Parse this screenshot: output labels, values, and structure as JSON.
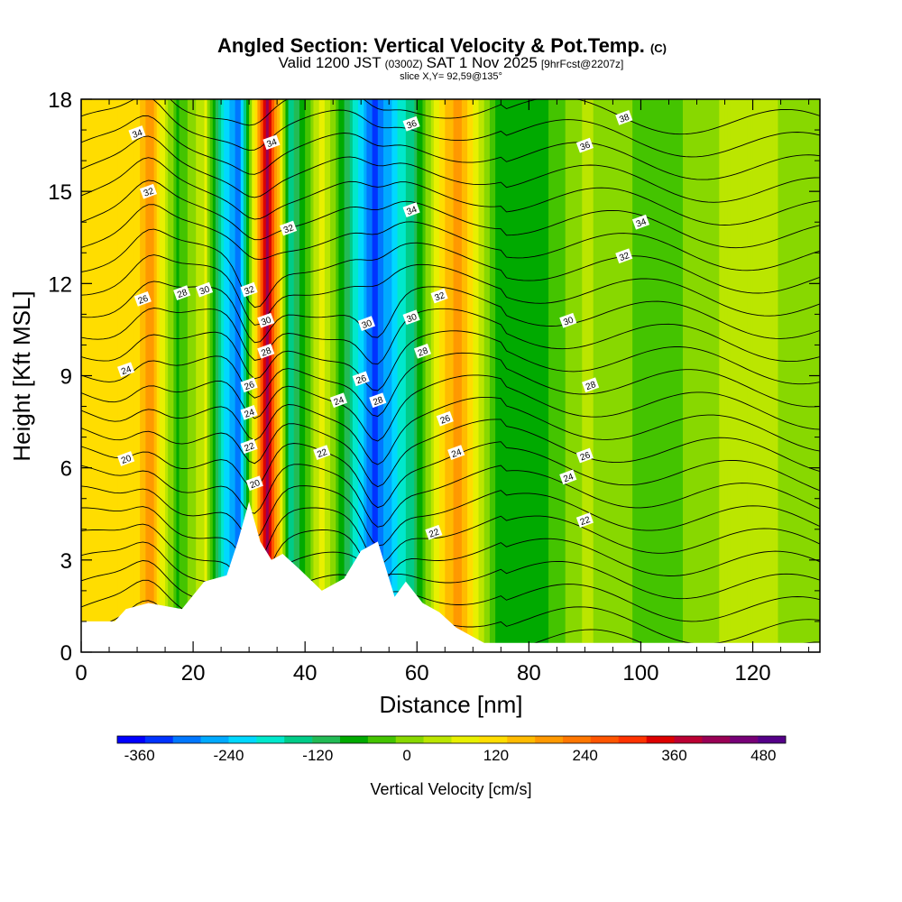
{
  "chart_data": {
    "type": "heatmap",
    "title": "Angled Section: Vertical Velocity & Pot.Temp.",
    "title_units": "(C)",
    "subtitle": {
      "valid_prefix": "Valid 1200 JST",
      "utc": "(0300Z)",
      "date": "SAT 1 Nov 2025",
      "forecast": "[9hrFcst@2207z]"
    },
    "slice_label": "slice X,Y= 92,59@135°",
    "xlabel": "Distance [nm]",
    "ylabel": "Height [Kft MSL]",
    "xlim": [
      0,
      132
    ],
    "ylim": [
      0,
      18
    ],
    "xticks": [
      "0",
      "20",
      "40",
      "60",
      "80",
      "100",
      "120"
    ],
    "yticks": [
      "0",
      "3",
      "6",
      "9",
      "12",
      "15",
      "18"
    ],
    "colorbar": {
      "label": "Vertical Velocity [cm/s]",
      "tick_labels": [
        "-360",
        "-240",
        "-120",
        "0",
        "120",
        "240",
        "360",
        "480"
      ],
      "tick_values": [
        -360,
        -240,
        -120,
        0,
        120,
        240,
        360,
        480
      ],
      "range": [
        -390,
        510
      ],
      "colors": [
        "#0000ff",
        "#0033ff",
        "#0077ff",
        "#00aaff",
        "#00d8ff",
        "#00e8cc",
        "#00cc88",
        "#22bb55",
        "#00aa00",
        "#44c400",
        "#88d800",
        "#bbe600",
        "#e8f000",
        "#ffdd00",
        "#ffbb00",
        "#ff9900",
        "#ff7700",
        "#ff5500",
        "#ff3300",
        "#dd0000",
        "#bb0033",
        "#990055",
        "#770077",
        "#550088"
      ]
    },
    "vertical_velocity_bands": [
      {
        "x_nm": 10,
        "value": 130
      },
      {
        "x_nm": 12,
        "value": 200
      },
      {
        "x_nm": 17,
        "value": -60
      },
      {
        "x_nm": 22,
        "value": 60
      },
      {
        "x_nm": 25,
        "value": -200
      },
      {
        "x_nm": 28,
        "value": -300
      },
      {
        "x_nm": 33,
        "value": 420
      },
      {
        "x_nm": 37,
        "value": -150
      },
      {
        "x_nm": 43,
        "value": 80
      },
      {
        "x_nm": 46,
        "value": -60
      },
      {
        "x_nm": 52,
        "value": -330
      },
      {
        "x_nm": 59,
        "value": -130
      },
      {
        "x_nm": 64,
        "value": 110
      },
      {
        "x_nm": 67,
        "value": 200
      },
      {
        "x_nm": 74,
        "value": -60
      },
      {
        "x_nm": 81,
        "value": -80
      },
      {
        "x_nm": 90,
        "value": 30
      },
      {
        "x_nm": 103,
        "value": -40
      },
      {
        "x_nm": 115,
        "value": 30
      },
      {
        "x_nm": 127,
        "value": 20
      }
    ],
    "terrain": {
      "x_nm": [
        0,
        6,
        8,
        12,
        18,
        22,
        26,
        28,
        30,
        32,
        34,
        36,
        39,
        43,
        47,
        50,
        53,
        56,
        58,
        61,
        64,
        67,
        70,
        72,
        132
      ],
      "height_kft": [
        1.0,
        1.0,
        1.4,
        1.6,
        1.4,
        2.3,
        2.5,
        3.6,
        4.9,
        3.6,
        3.0,
        3.2,
        2.7,
        2.0,
        2.4,
        3.3,
        3.6,
        1.8,
        2.3,
        1.6,
        1.3,
        0.8,
        0.5,
        0.3,
        0.3
      ]
    },
    "pot_temp_contour_labels": [
      {
        "text": "34",
        "x_nm": 10,
        "y_kft": 16.9
      },
      {
        "text": "32",
        "x_nm": 12,
        "y_kft": 15.0
      },
      {
        "text": "26",
        "x_nm": 11,
        "y_kft": 11.5
      },
      {
        "text": "28",
        "x_nm": 18,
        "y_kft": 11.7
      },
      {
        "text": "30",
        "x_nm": 22,
        "y_kft": 11.8
      },
      {
        "text": "24",
        "x_nm": 8,
        "y_kft": 9.2
      },
      {
        "text": "20",
        "x_nm": 8,
        "y_kft": 6.3
      },
      {
        "text": "34",
        "x_nm": 34,
        "y_kft": 16.6
      },
      {
        "text": "32",
        "x_nm": 37,
        "y_kft": 13.8
      },
      {
        "text": "32",
        "x_nm": 30,
        "y_kft": 11.8
      },
      {
        "text": "30",
        "x_nm": 33,
        "y_kft": 10.8
      },
      {
        "text": "28",
        "x_nm": 33,
        "y_kft": 9.8
      },
      {
        "text": "26",
        "x_nm": 30,
        "y_kft": 8.7
      },
      {
        "text": "24",
        "x_nm": 30,
        "y_kft": 7.8
      },
      {
        "text": "22",
        "x_nm": 30,
        "y_kft": 6.7
      },
      {
        "text": "20",
        "x_nm": 31,
        "y_kft": 5.5
      },
      {
        "text": "22",
        "x_nm": 43,
        "y_kft": 6.5
      },
      {
        "text": "24",
        "x_nm": 46,
        "y_kft": 8.2
      },
      {
        "text": "36",
        "x_nm": 59,
        "y_kft": 17.2
      },
      {
        "text": "34",
        "x_nm": 59,
        "y_kft": 14.4
      },
      {
        "text": "32",
        "x_nm": 64,
        "y_kft": 11.6
      },
      {
        "text": "30",
        "x_nm": 59,
        "y_kft": 10.9
      },
      {
        "text": "30",
        "x_nm": 51,
        "y_kft": 10.7
      },
      {
        "text": "28",
        "x_nm": 61,
        "y_kft": 9.8
      },
      {
        "text": "26",
        "x_nm": 50,
        "y_kft": 8.9
      },
      {
        "text": "28",
        "x_nm": 53,
        "y_kft": 8.2
      },
      {
        "text": "26",
        "x_nm": 65,
        "y_kft": 7.6
      },
      {
        "text": "24",
        "x_nm": 67,
        "y_kft": 6.5
      },
      {
        "text": "22",
        "x_nm": 63,
        "y_kft": 3.9
      },
      {
        "text": "38",
        "x_nm": 97,
        "y_kft": 17.4
      },
      {
        "text": "36",
        "x_nm": 90,
        "y_kft": 16.5
      },
      {
        "text": "34",
        "x_nm": 100,
        "y_kft": 14.0
      },
      {
        "text": "32",
        "x_nm": 97,
        "y_kft": 12.9
      },
      {
        "text": "30",
        "x_nm": 87,
        "y_kft": 10.8
      },
      {
        "text": "28",
        "x_nm": 91,
        "y_kft": 8.7
      },
      {
        "text": "26",
        "x_nm": 90,
        "y_kft": 6.4
      },
      {
        "text": "24",
        "x_nm": 87,
        "y_kft": 5.7
      },
      {
        "text": "22",
        "x_nm": 90,
        "y_kft": 4.3
      }
    ]
  }
}
